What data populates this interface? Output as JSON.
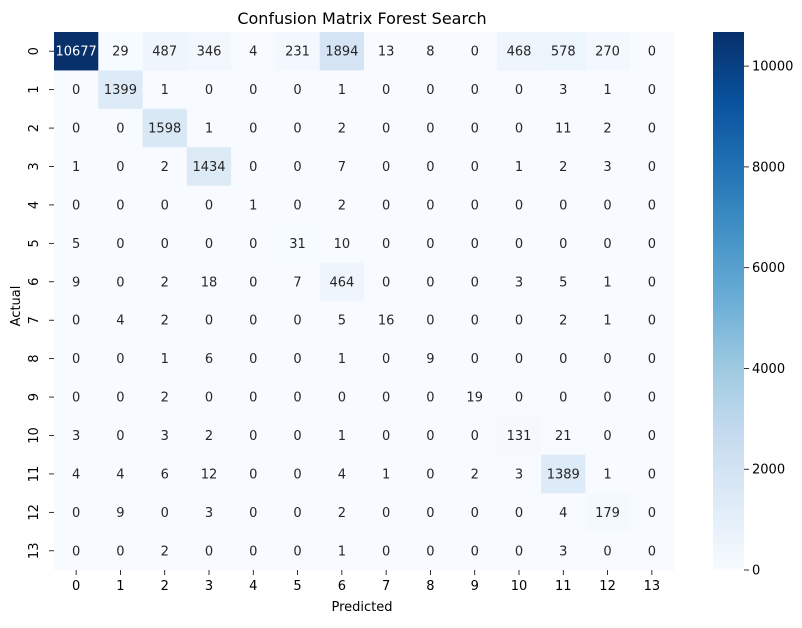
{
  "chart_data": {
    "type": "heatmap",
    "title": "Confusion Matrix Forest Search",
    "xlabel": "Predicted",
    "ylabel": "Actual",
    "x_categories": [
      "0",
      "1",
      "2",
      "3",
      "4",
      "5",
      "6",
      "7",
      "8",
      "9",
      "10",
      "11",
      "12",
      "13"
    ],
    "y_categories": [
      "0",
      "1",
      "2",
      "3",
      "4",
      "5",
      "6",
      "7",
      "8",
      "9",
      "10",
      "11",
      "12",
      "13"
    ],
    "values": [
      [
        10677,
        29,
        487,
        346,
        4,
        231,
        1894,
        13,
        8,
        0,
        468,
        578,
        270,
        0
      ],
      [
        0,
        1399,
        1,
        0,
        0,
        0,
        1,
        0,
        0,
        0,
        0,
        3,
        1,
        0
      ],
      [
        0,
        0,
        1598,
        1,
        0,
        0,
        2,
        0,
        0,
        0,
        0,
        11,
        2,
        0
      ],
      [
        1,
        0,
        2,
        1434,
        0,
        0,
        7,
        0,
        0,
        0,
        1,
        2,
        3,
        0
      ],
      [
        0,
        0,
        0,
        0,
        1,
        0,
        2,
        0,
        0,
        0,
        0,
        0,
        0,
        0
      ],
      [
        5,
        0,
        0,
        0,
        0,
        31,
        10,
        0,
        0,
        0,
        0,
        0,
        0,
        0
      ],
      [
        9,
        0,
        2,
        18,
        0,
        7,
        464,
        0,
        0,
        0,
        3,
        5,
        1,
        0
      ],
      [
        0,
        4,
        2,
        0,
        0,
        0,
        5,
        16,
        0,
        0,
        0,
        2,
        1,
        0
      ],
      [
        0,
        0,
        1,
        6,
        0,
        0,
        1,
        0,
        9,
        0,
        0,
        0,
        0,
        0
      ],
      [
        0,
        0,
        2,
        0,
        0,
        0,
        0,
        0,
        0,
        19,
        0,
        0,
        0,
        0
      ],
      [
        3,
        0,
        3,
        2,
        0,
        0,
        1,
        0,
        0,
        0,
        131,
        21,
        0,
        0
      ],
      [
        4,
        4,
        6,
        12,
        0,
        0,
        4,
        1,
        0,
        2,
        3,
        1389,
        1,
        0
      ],
      [
        0,
        9,
        0,
        3,
        0,
        0,
        2,
        0,
        0,
        0,
        0,
        4,
        179,
        0
      ],
      [
        0,
        0,
        2,
        0,
        0,
        0,
        1,
        0,
        0,
        0,
        0,
        3,
        0,
        0
      ]
    ],
    "colormap": "Blues",
    "vmin": 0,
    "vmax": 10677,
    "colorbar_ticks": [
      0,
      2000,
      4000,
      6000,
      8000,
      10000
    ],
    "grid": false
  }
}
